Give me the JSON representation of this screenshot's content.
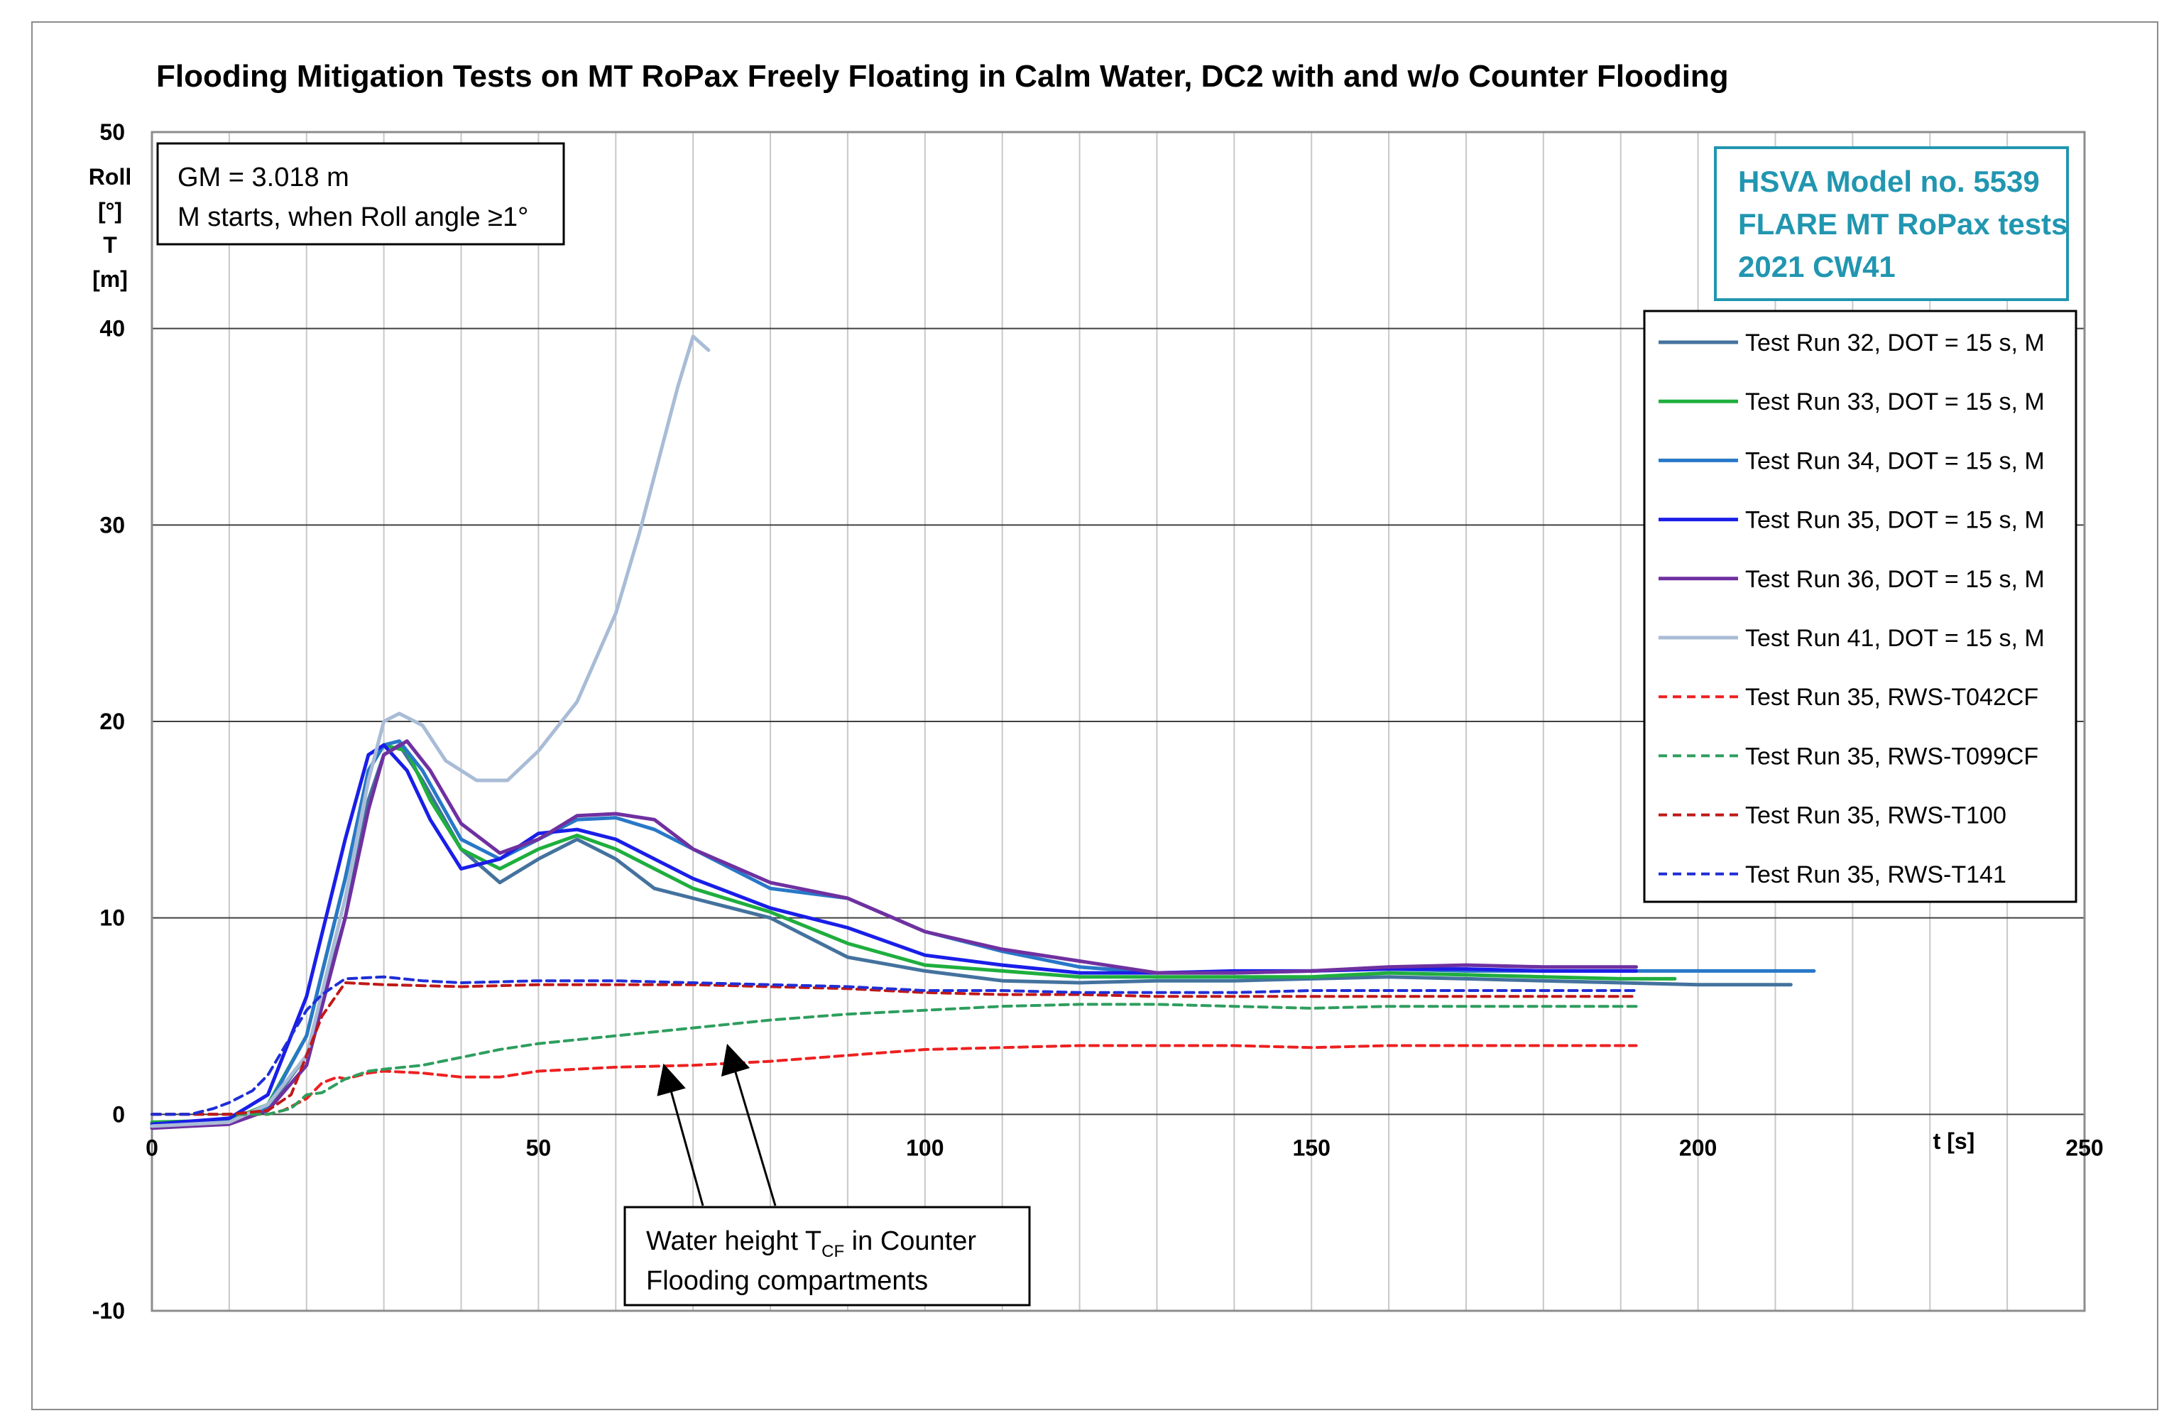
{
  "chart_data": {
    "type": "line",
    "title": "Flooding Mitigation Tests  on MT RoPax Freely Floating in Calm Water, DC2 with and w/o Counter Flooding",
    "xlabel": "t [s]",
    "ylabel_lines": [
      "Roll",
      "[°]",
      "T",
      "[m]"
    ],
    "xlim": [
      0,
      250
    ],
    "ylim": [
      -10,
      50
    ],
    "x_ticks": [
      "0",
      "50",
      "100",
      "150",
      "200",
      "250"
    ],
    "y_ticks": [
      "-10",
      "0",
      "10",
      "20",
      "30",
      "40",
      "50"
    ],
    "grid": true,
    "legend_position": "right",
    "gm_box": [
      "GM = 3.018 m",
      "M starts, when Roll angle ≥1°"
    ],
    "hsva_box": [
      "HSVA Model no. 5539",
      "FLARE MT RoPax tests",
      "2021 CW41"
    ],
    "annotation": {
      "line1": "Water height T",
      "line1_sub": "CF",
      "line1_rest": " in Counter",
      "line2": "Flooding compartments"
    },
    "series": [
      {
        "name": "Test Run 32, DOT = 15 s, M",
        "color": "#44729e",
        "dash": false,
        "x": [
          0,
          10,
          15,
          20,
          25,
          28,
          30,
          32,
          35,
          40,
          45,
          50,
          55,
          60,
          65,
          70,
          80,
          90,
          100,
          110,
          120,
          130,
          140,
          150,
          160,
          170,
          180,
          190,
          200,
          212
        ],
        "y": [
          -0.6,
          -0.4,
          0.3,
          3,
          10,
          16,
          18.3,
          18.8,
          17,
          13.5,
          11.8,
          13,
          14,
          13,
          11.5,
          11,
          10,
          8,
          7.3,
          6.8,
          6.7,
          6.8,
          6.8,
          6.9,
          7,
          6.9,
          6.8,
          6.7,
          6.6,
          6.6
        ]
      },
      {
        "name": "Test Run 33, DOT = 15 s, M",
        "color": "#1fae3e",
        "dash": false,
        "x": [
          0,
          10,
          15,
          20,
          25,
          28,
          30,
          33,
          36,
          40,
          45,
          50,
          55,
          60,
          65,
          70,
          80,
          90,
          100,
          110,
          120,
          130,
          140,
          150,
          160,
          170,
          180,
          190,
          197
        ],
        "y": [
          -0.4,
          -0.3,
          0.5,
          4,
          12,
          17.5,
          18.8,
          18.5,
          16,
          13.5,
          12.5,
          13.5,
          14.2,
          13.5,
          12.5,
          11.5,
          10.3,
          8.7,
          7.6,
          7.3,
          7,
          7,
          7,
          7,
          7.2,
          7.1,
          7,
          6.9,
          6.9
        ]
      },
      {
        "name": "Test Run 34, DOT = 15 s, M",
        "color": "#2878c8",
        "dash": false,
        "x": [
          0,
          10,
          15,
          20,
          25,
          28,
          30,
          32,
          35,
          40,
          45,
          50,
          55,
          60,
          65,
          70,
          80,
          90,
          100,
          110,
          120,
          130,
          140,
          150,
          160,
          170,
          180,
          190,
          200,
          215
        ],
        "y": [
          -0.6,
          -0.4,
          0.4,
          4,
          12,
          17.5,
          18.8,
          19,
          17.5,
          14,
          13,
          14,
          15,
          15.1,
          14.5,
          13.5,
          11.5,
          11,
          9.3,
          8.3,
          7.5,
          7.2,
          7.2,
          7.3,
          7.4,
          7.3,
          7.3,
          7.3,
          7.3,
          7.3
        ]
      },
      {
        "name": "Test Run 35, DOT = 15 s, M",
        "color": "#1a1ee8",
        "dash": false,
        "x": [
          0,
          10,
          15,
          20,
          25,
          28,
          30,
          33,
          36,
          40,
          45,
          50,
          55,
          60,
          70,
          80,
          90,
          100,
          110,
          120,
          130,
          140,
          150,
          160,
          170,
          180,
          192
        ],
        "y": [
          -0.5,
          -0.2,
          1,
          6,
          14,
          18.3,
          18.8,
          17.5,
          15,
          12.5,
          13,
          14.3,
          14.5,
          14,
          12,
          10.5,
          9.5,
          8.1,
          7.6,
          7.2,
          7.2,
          7.3,
          7.3,
          7.4,
          7.4,
          7.3,
          7.3
        ]
      },
      {
        "name": "Test Run 36, DOT = 15 s, M",
        "color": "#7030a0",
        "dash": false,
        "x": [
          0,
          10,
          15,
          20,
          25,
          28,
          30,
          33,
          36,
          40,
          45,
          50,
          55,
          60,
          65,
          70,
          80,
          90,
          100,
          110,
          120,
          130,
          140,
          150,
          160,
          170,
          180,
          192
        ],
        "y": [
          -0.7,
          -0.5,
          0.2,
          2.5,
          10,
          15.5,
          18.3,
          19,
          17.5,
          14.8,
          13.3,
          14,
          15.2,
          15.3,
          15,
          13.5,
          11.8,
          11,
          9.3,
          8.4,
          7.8,
          7.2,
          7.2,
          7.3,
          7.5,
          7.6,
          7.5,
          7.5
        ]
      },
      {
        "name": "Test Run 41, DOT = 15 s, M",
        "color": "#a9bcd6",
        "dash": false,
        "x": [
          0,
          10,
          15,
          20,
          25,
          28,
          30,
          32,
          35,
          38,
          42,
          46,
          50,
          55,
          60,
          63,
          66,
          68,
          70,
          72
        ],
        "y": [
          -0.6,
          -0.4,
          0.5,
          3,
          11,
          17,
          20,
          20.4,
          19.8,
          18,
          17,
          17,
          18.5,
          21,
          25.5,
          29.5,
          34,
          37,
          39.6,
          38.9
        ]
      },
      {
        "name": "Test Run 35, RWS-T042CF",
        "color": "#ee2020",
        "dash": true,
        "x": [
          0,
          15,
          17,
          20,
          22,
          24,
          25,
          28,
          30,
          35,
          40,
          45,
          50,
          60,
          70,
          80,
          90,
          100,
          110,
          120,
          130,
          140,
          150,
          160,
          170,
          180,
          192
        ],
        "y": [
          0,
          0,
          0.2,
          0.8,
          1.6,
          1.9,
          1.8,
          2.1,
          2.2,
          2.1,
          1.9,
          1.9,
          2.2,
          2.4,
          2.5,
          2.7,
          3,
          3.3,
          3.4,
          3.5,
          3.5,
          3.5,
          3.4,
          3.5,
          3.5,
          3.5,
          3.5
        ]
      },
      {
        "name": "Test Run 35, RWS-T099CF",
        "color": "#2e9e5e",
        "dash": true,
        "x": [
          0,
          15,
          18,
          20,
          22,
          25,
          28,
          30,
          35,
          40,
          45,
          50,
          60,
          70,
          80,
          90,
          100,
          110,
          120,
          130,
          140,
          150,
          160,
          170,
          180,
          192
        ],
        "y": [
          0,
          0,
          0.3,
          1,
          1.1,
          1.8,
          2.2,
          2.3,
          2.5,
          2.9,
          3.3,
          3.6,
          4,
          4.4,
          4.8,
          5.1,
          5.3,
          5.5,
          5.6,
          5.6,
          5.5,
          5.4,
          5.5,
          5.5,
          5.5,
          5.5
        ]
      },
      {
        "name": "Test Run 35, RWS-T100",
        "color": "#c01818",
        "dash": true,
        "x": [
          0,
          10,
          15,
          18,
          20,
          22,
          25,
          30,
          40,
          50,
          60,
          70,
          80,
          90,
          100,
          110,
          120,
          130,
          140,
          150,
          160,
          170,
          180,
          192
        ],
        "y": [
          0,
          0,
          0.2,
          1,
          3,
          5,
          6.7,
          6.6,
          6.5,
          6.6,
          6.6,
          6.6,
          6.5,
          6.4,
          6.2,
          6.1,
          6.1,
          6,
          6,
          6,
          6,
          6,
          6,
          6
        ]
      },
      {
        "name": "Test Run 35, RWS-T141",
        "color": "#1f2ed6",
        "dash": true,
        "x": [
          0,
          5,
          8,
          10,
          13,
          15,
          18,
          20,
          22,
          25,
          30,
          35,
          40,
          50,
          60,
          70,
          80,
          90,
          100,
          110,
          120,
          130,
          140,
          150,
          160,
          170,
          180,
          192
        ],
        "y": [
          0,
          0,
          0.3,
          0.6,
          1.2,
          2,
          4,
          5.3,
          6.1,
          6.9,
          7,
          6.8,
          6.7,
          6.8,
          6.8,
          6.7,
          6.6,
          6.5,
          6.3,
          6.3,
          6.2,
          6.2,
          6.2,
          6.3,
          6.3,
          6.3,
          6.3,
          6.3
        ]
      }
    ]
  }
}
